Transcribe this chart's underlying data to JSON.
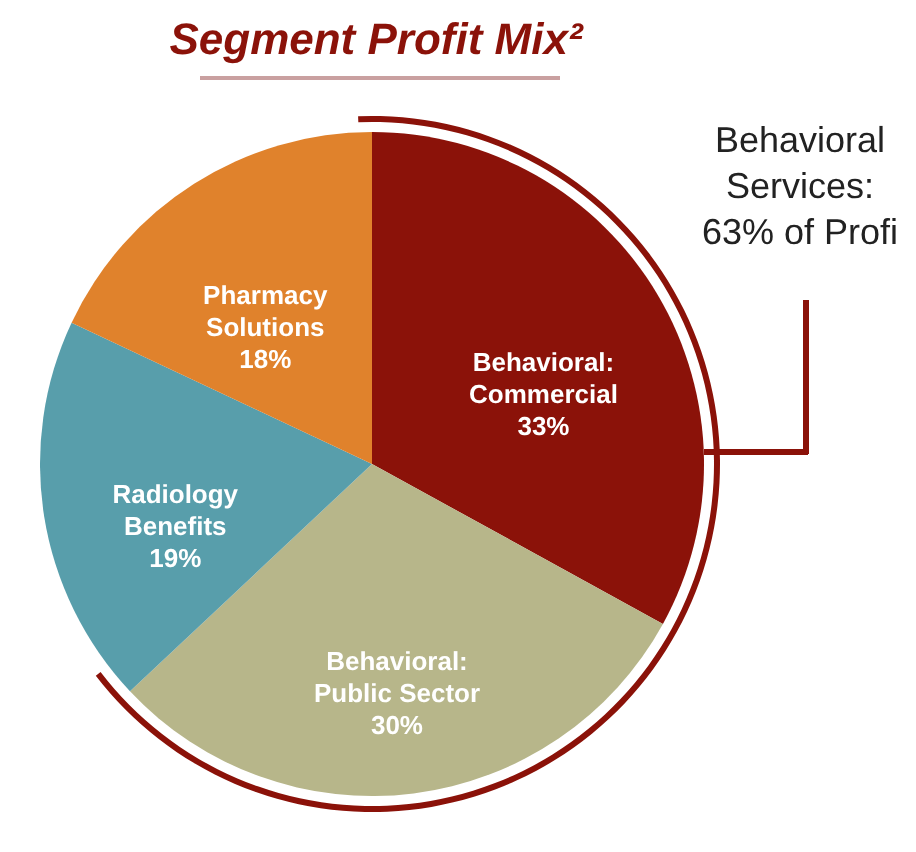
{
  "chart_data": {
    "type": "pie",
    "title": "Segment Profit Mix²",
    "categories": [
      "Behavioral: Commercial",
      "Behavioral: Public Sector",
      "Radiology Benefits",
      "Pharmacy Solutions"
    ],
    "values": [
      33,
      30,
      19,
      18
    ],
    "colors": [
      "#8b1209",
      "#b7b68a",
      "#589eab",
      "#e0822c"
    ],
    "value_labels": [
      "33%",
      "30%",
      "19%",
      "18%"
    ],
    "annotations": [
      "Behavioral Services: 63% of Profi"
    ]
  }
}
